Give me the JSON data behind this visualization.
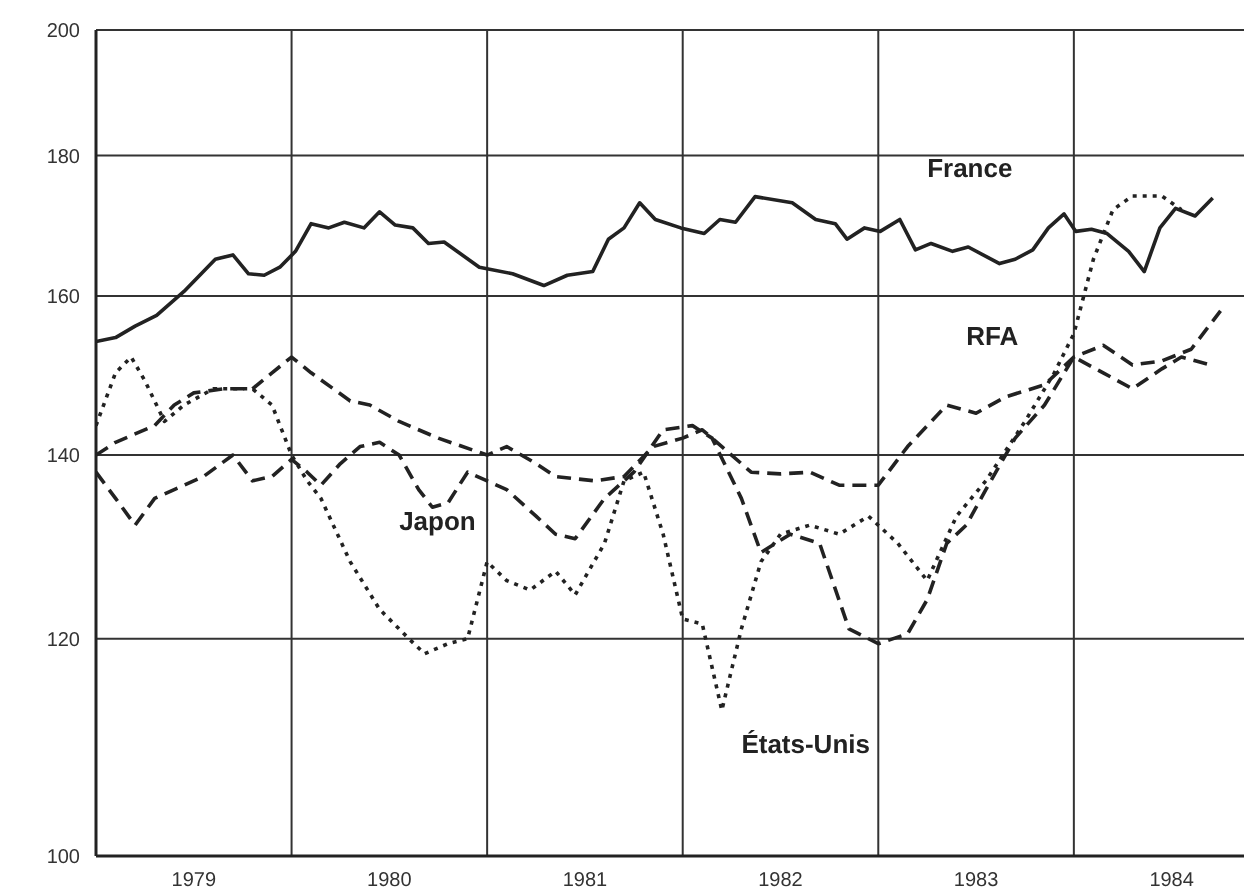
{
  "chart_data": {
    "type": "line",
    "log": "y",
    "grid": true,
    "xlim": [
      1979,
      1984.87
    ],
    "xticks": [
      {
        "value": 1979.5,
        "label": "1979"
      },
      {
        "value": 1980,
        "label": null
      },
      {
        "value": 1980.5,
        "label": "1980"
      },
      {
        "value": 1981,
        "label": null
      },
      {
        "value": 1981.5,
        "label": "1981"
      },
      {
        "value": 1982,
        "label": null
      },
      {
        "value": 1982.5,
        "label": "1982"
      },
      {
        "value": 1983,
        "label": null
      },
      {
        "value": 1983.5,
        "label": "1983"
      },
      {
        "value": 1984,
        "label": null
      },
      {
        "value": 1984.5,
        "label": "1984"
      }
    ],
    "ylim": [
      100,
      200
    ],
    "yticks": [
      100,
      120,
      140,
      160,
      180,
      200
    ],
    "series": [
      {
        "name": "France",
        "color": "#222222",
        "line_style": "solid",
        "x": [
          1979,
          1979.1,
          1979.2,
          1979.31,
          1979.45,
          1979.61,
          1979.7,
          1979.78,
          1979.86,
          1979.94,
          1980.02,
          1980.1,
          1980.19,
          1980.27,
          1980.37,
          1980.45,
          1980.53,
          1980.62,
          1980.7,
          1980.78,
          1980.96,
          1981.13,
          1981.29,
          1981.41,
          1981.54,
          1981.62,
          1981.7,
          1981.78,
          1981.86,
          1981.99,
          1982.11,
          1982.19,
          1982.27,
          1982.37,
          1982.56,
          1982.68,
          1982.78,
          1982.84,
          1982.93,
          1983.01,
          1983.11,
          1983.19,
          1983.27,
          1983.38,
          1983.46,
          1983.62,
          1983.7,
          1983.79,
          1983.87,
          1983.95,
          1984.01,
          1984.09,
          1984.17,
          1984.28,
          1984.36,
          1984.44,
          1984.52,
          1984.62,
          1984.71
        ],
        "values": [
          154,
          154.5,
          156,
          157.4,
          160.6,
          165,
          165.6,
          163,
          162.8,
          163.9,
          166.1,
          170,
          169.4,
          170.2,
          169.4,
          171.7,
          169.8,
          169.4,
          167.2,
          167.4,
          163.9,
          163,
          161.4,
          162.8,
          163.3,
          167.8,
          169.4,
          173,
          170.6,
          169.4,
          168.6,
          170.6,
          170.2,
          173.9,
          173,
          170.6,
          170,
          167.8,
          169.4,
          168.9,
          170.6,
          166.3,
          167.2,
          166.1,
          166.7,
          164.4,
          165,
          166.3,
          169.4,
          171.4,
          168.9,
          169.2,
          168.6,
          166.1,
          163.3,
          169.4,
          172.2,
          171.1,
          173.7
        ]
      },
      {
        "name": "RFA",
        "color": "#222222",
        "line_style": "dashed",
        "x": [
          1979,
          1979.1,
          1979.2,
          1979.3,
          1979.4,
          1979.5,
          1979.65,
          1979.8,
          1979.9,
          1980,
          1980.1,
          1980.3,
          1980.4,
          1980.55,
          1980.75,
          1981,
          1981.1,
          1981.25,
          1981.35,
          1981.55,
          1981.7,
          1981.85,
          1982,
          1982.1,
          1982.2,
          1982.35,
          1982.5,
          1982.65,
          1982.8,
          1983,
          1983.15,
          1983.35,
          1983.5,
          1983.65,
          1983.85,
          1984,
          1984.15,
          1984.3,
          1984.45,
          1984.6,
          1984.75
        ],
        "values": [
          140,
          141.5,
          142.5,
          143.5,
          146,
          147.5,
          148,
          148,
          150,
          152,
          150,
          146.5,
          146,
          144,
          142,
          140,
          141,
          139,
          137.5,
          137,
          137.5,
          141,
          142,
          143,
          141,
          138,
          137.8,
          138,
          136.5,
          136.5,
          141,
          146,
          145,
          147,
          148.5,
          152,
          153.5,
          151,
          151.5,
          153,
          158
        ]
      },
      {
        "name": "Japon",
        "color": "#222222",
        "line_style": "dashed",
        "x": [
          1979,
          1979.1,
          1979.2,
          1979.3,
          1979.4,
          1979.55,
          1979.7,
          1979.8,
          1979.9,
          1980,
          1980.08,
          1980.15,
          1980.25,
          1980.35,
          1980.45,
          1980.55,
          1980.65,
          1980.72,
          1980.8,
          1980.9,
          1981,
          1981.1,
          1981.25,
          1981.35,
          1981.45,
          1981.6,
          1981.75,
          1981.9,
          1982.05,
          1982.15,
          1982.3,
          1982.4,
          1982.55,
          1982.7,
          1982.85,
          1983,
          1983.15,
          1983.25,
          1983.35,
          1983.45,
          1983.55,
          1983.7,
          1983.85,
          1984,
          1984.15,
          1984.3,
          1984.45,
          1984.55,
          1984.7
        ],
        "values": [
          138,
          135,
          132,
          135,
          136,
          137.5,
          140,
          137,
          137.5,
          139.5,
          138,
          136.5,
          139,
          141,
          141.5,
          140,
          136,
          134,
          134.5,
          138,
          137,
          136,
          133,
          131,
          130.5,
          135,
          138,
          143,
          143.5,
          142,
          135,
          129,
          131,
          130,
          121,
          119.5,
          120.5,
          124,
          130,
          132,
          136,
          142,
          146,
          152,
          150,
          148,
          150.5,
          152,
          151
        ]
      },
      {
        "name": "États-Unis",
        "color": "#222222",
        "line_style": "dotted",
        "x": [
          1979,
          1979.1,
          1979.18,
          1979.25,
          1979.35,
          1979.45,
          1979.6,
          1979.8,
          1979.9,
          1980,
          1980.08,
          1980.15,
          1980.3,
          1980.45,
          1980.6,
          1980.68,
          1980.8,
          1980.9,
          1981,
          1981.1,
          1981.22,
          1981.35,
          1981.45,
          1981.6,
          1981.7,
          1981.8,
          1981.9,
          1982,
          1982.1,
          1982.2,
          1982.3,
          1982.4,
          1982.5,
          1982.65,
          1982.8,
          1982.95,
          1983.1,
          1983.25,
          1983.4,
          1983.55,
          1983.75,
          1983.9,
          1984,
          1984.1,
          1984.2,
          1984.3,
          1984.45,
          1984.55
        ],
        "values": [
          143.5,
          150,
          152,
          149,
          144,
          146,
          148,
          148,
          146,
          140,
          137,
          135,
          128,
          123,
          120,
          118.5,
          119.5,
          120,
          128,
          126,
          125,
          127,
          124.5,
          130,
          137,
          138,
          131,
          122,
          121.5,
          113,
          121,
          128,
          131,
          132,
          131,
          133,
          130,
          126,
          133,
          137,
          144,
          150,
          155,
          165,
          172,
          174,
          174,
          172
        ]
      }
    ]
  }
}
